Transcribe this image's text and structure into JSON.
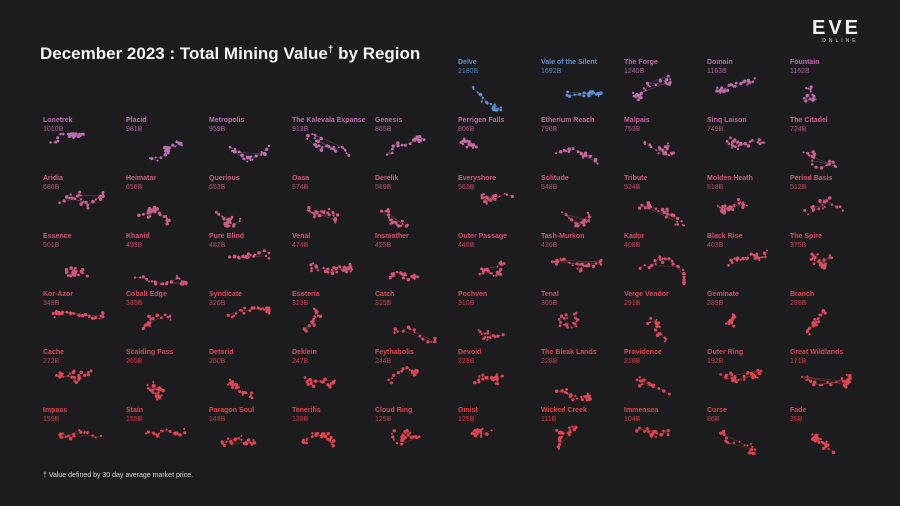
{
  "header": {
    "title": "December 2023 : Total Mining Value",
    "title_dagger": "†",
    "title_suffix": " by Region",
    "logo_text": "EVE",
    "logo_subtext": "ONLINE",
    "footnote": "† Value defined by 30 day average market price."
  },
  "colors": {
    "background": "#1d1d1f",
    "high": "#5b8fd6",
    "mid": "#b873b6",
    "low": "#e0444d"
  },
  "chart_data": {
    "type": "small-multiples",
    "unit": "B",
    "regions": [
      {
        "name": "Delve",
        "label": "2180B",
        "value": 2180
      },
      {
        "name": "Vale of the Silent",
        "label": "1692B",
        "value": 1692
      },
      {
        "name": "The Forge",
        "label": "1240B",
        "value": 1240
      },
      {
        "name": "Domain",
        "label": "1163B",
        "value": 1163
      },
      {
        "name": "Fountain",
        "label": "1162B",
        "value": 1162
      },
      {
        "name": "Lonetrek",
        "label": "1010B",
        "value": 1010
      },
      {
        "name": "Placid",
        "label": "981B",
        "value": 981
      },
      {
        "name": "Metropolis",
        "label": "959B",
        "value": 959
      },
      {
        "name": "The Kalevala Expanse",
        "label": "913B",
        "value": 913
      },
      {
        "name": "Genesis",
        "label": "865B",
        "value": 865
      },
      {
        "name": "Perrigen Falls",
        "label": "806B",
        "value": 806
      },
      {
        "name": "Etherium Reach",
        "label": "796B",
        "value": 796
      },
      {
        "name": "Malpais",
        "label": "753B",
        "value": 753
      },
      {
        "name": "Sinq Laison",
        "label": "749B",
        "value": 749
      },
      {
        "name": "The Citadel",
        "label": "724B",
        "value": 724
      },
      {
        "name": "Aridia",
        "label": "686B",
        "value": 686
      },
      {
        "name": "Heimatar",
        "label": "656B",
        "value": 656
      },
      {
        "name": "Querious",
        "label": "653B",
        "value": 653
      },
      {
        "name": "Oasa",
        "label": "574B",
        "value": 574
      },
      {
        "name": "Derelik",
        "label": "569B",
        "value": 569
      },
      {
        "name": "Everyshore",
        "label": "563B",
        "value": 563
      },
      {
        "name": "Solitude",
        "label": "548B",
        "value": 548
      },
      {
        "name": "Tribute",
        "label": "524B",
        "value": 524
      },
      {
        "name": "Molden Heath",
        "label": "518B",
        "value": 518
      },
      {
        "name": "Period Basis",
        "label": "512B",
        "value": 512
      },
      {
        "name": "Essence",
        "label": "501B",
        "value": 501
      },
      {
        "name": "Khanid",
        "label": "499B",
        "value": 499
      },
      {
        "name": "Pure Blind",
        "label": "482B",
        "value": 482
      },
      {
        "name": "Venal",
        "label": "474B",
        "value": 474
      },
      {
        "name": "Insmother",
        "label": "455B",
        "value": 455
      },
      {
        "name": "Outer Passage",
        "label": "446B",
        "value": 446
      },
      {
        "name": "Tash-Murkon",
        "label": "436B",
        "value": 436
      },
      {
        "name": "Kador",
        "label": "408B",
        "value": 408
      },
      {
        "name": "Black Rise",
        "label": "403B",
        "value": 403
      },
      {
        "name": "The Spire",
        "label": "375B",
        "value": 375
      },
      {
        "name": "Kor-Azor",
        "label": "349B",
        "value": 349
      },
      {
        "name": "Cobalt Edge",
        "label": "335B",
        "value": 335
      },
      {
        "name": "Syndicate",
        "label": "326B",
        "value": 326
      },
      {
        "name": "Esoteria",
        "label": "323B",
        "value": 323
      },
      {
        "name": "Catch",
        "label": "315B",
        "value": 315
      },
      {
        "name": "Pochven",
        "label": "310B",
        "value": 310
      },
      {
        "name": "Tenal",
        "label": "305B",
        "value": 305
      },
      {
        "name": "Verge Vendor",
        "label": "291B",
        "value": 291
      },
      {
        "name": "Geminate",
        "label": "289B",
        "value": 289
      },
      {
        "name": "Branch",
        "label": "286B",
        "value": 286
      },
      {
        "name": "Cache",
        "label": "272B",
        "value": 272
      },
      {
        "name": "Scalding Pass",
        "label": "265B",
        "value": 265
      },
      {
        "name": "Detorid",
        "label": "250B",
        "value": 250
      },
      {
        "name": "Deklein",
        "label": "247B",
        "value": 247
      },
      {
        "name": "Feythabolis",
        "label": "244B",
        "value": 244
      },
      {
        "name": "Devoid",
        "label": "229B",
        "value": 229
      },
      {
        "name": "The Bleak Lands",
        "label": "228B",
        "value": 228
      },
      {
        "name": "Providence",
        "label": "218B",
        "value": 218
      },
      {
        "name": "Outer Ring",
        "label": "192B",
        "value": 192
      },
      {
        "name": "Great Wildlands",
        "label": "171B",
        "value": 171
      },
      {
        "name": "Impass",
        "label": "159B",
        "value": 159
      },
      {
        "name": "Stain",
        "label": "155B",
        "value": 155
      },
      {
        "name": "Paragon Soul",
        "label": "149B",
        "value": 149
      },
      {
        "name": "Tenerifis",
        "label": "128B",
        "value": 128
      },
      {
        "name": "Cloud Ring",
        "label": "125B",
        "value": 125
      },
      {
        "name": "Omist",
        "label": "125B",
        "value": 125
      },
      {
        "name": "Wicked Creek",
        "label": "111B",
        "value": 111
      },
      {
        "name": "Immensea",
        "label": "104B",
        "value": 104
      },
      {
        "name": "Curse",
        "label": "86B",
        "value": 86
      },
      {
        "name": "Fade",
        "label": "35B",
        "value": 35
      }
    ]
  }
}
